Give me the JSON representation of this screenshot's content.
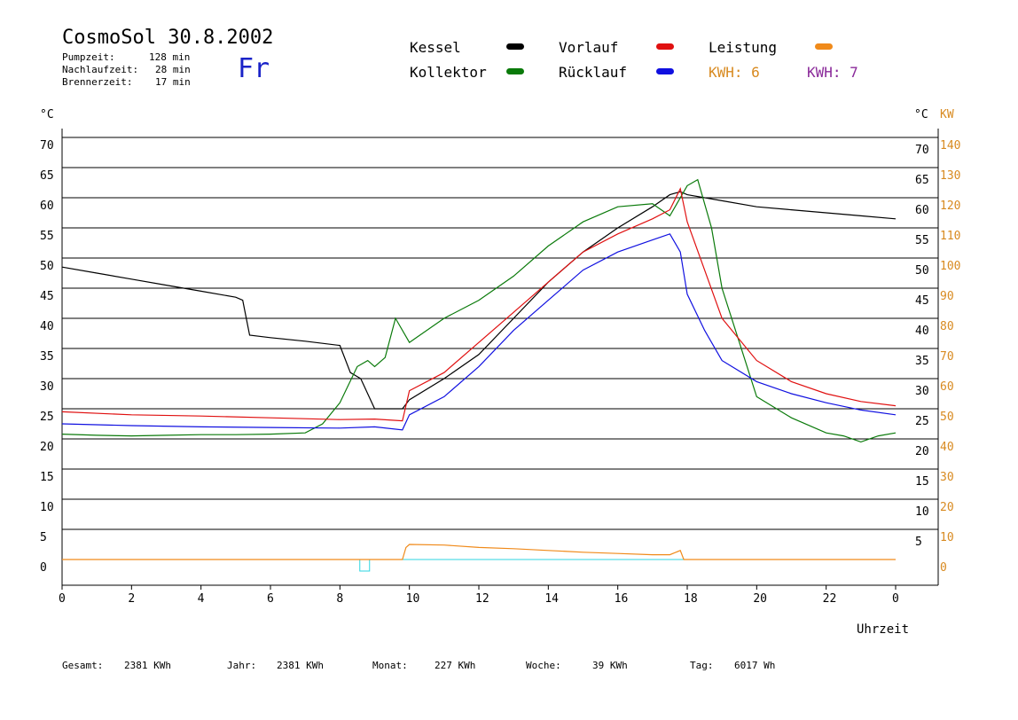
{
  "header": {
    "title": "CosmoSol 30.8.2002",
    "day": "Fr",
    "stats": [
      {
        "label": "Pumpzeit:",
        "value": "128 min"
      },
      {
        "label": "Nachlaufzeit:",
        "value": "28 min"
      },
      {
        "label": "Brennerzeit:",
        "value": "17 min"
      }
    ]
  },
  "legend": [
    {
      "label": "Kessel",
      "color": "#000000"
    },
    {
      "label": "Kollektor",
      "color": "#0a7a0a"
    },
    {
      "label": "Vorlauf",
      "color": "#e01010"
    },
    {
      "label": "Rücklauf",
      "color": "#1010e0"
    },
    {
      "label": "Leistung",
      "color": "#f08a1a"
    },
    {
      "label": "KWH: 6",
      "color": "#d88a20"
    },
    {
      "label": "KWH: 7",
      "color": "#8a2a9a"
    }
  ],
  "axes": {
    "left_unit": "°C",
    "right_unit_c": "°C",
    "right_unit_kw": "KW",
    "left_ticks": [
      "70",
      "65",
      "60",
      "55",
      "50",
      "45",
      "40",
      "35",
      "30",
      "25",
      "20",
      "15",
      "10",
      "5",
      "0"
    ],
    "right_ticks_c": [
      "70",
      "65",
      "60",
      "55",
      "50",
      "45",
      "40",
      "35",
      "30",
      "25",
      "20",
      "15",
      "10",
      "5"
    ],
    "right_ticks_kw": [
      "140",
      "130",
      "120",
      "110",
      "100",
      "90",
      "80",
      "70",
      "60",
      "50",
      "40",
      "30",
      "20",
      "10",
      "0"
    ],
    "x_ticks": [
      "0",
      "2",
      "4",
      "6",
      "8",
      "10",
      "12",
      "14",
      "16",
      "18",
      "20",
      "22",
      "0"
    ],
    "x_label": "Uhrzeit"
  },
  "footer": [
    {
      "label": "Gesamt:",
      "value": "2381 KWh"
    },
    {
      "label": "Jahr:",
      "value": "2381 KWh"
    },
    {
      "label": "Monat:",
      "value": "227 KWh"
    },
    {
      "label": "Woche:",
      "value": "39 KWh"
    },
    {
      "label": "Tag:",
      "value": "6017 Wh"
    }
  ],
  "chart_data": {
    "type": "line",
    "xlim": [
      0,
      24
    ],
    "ylim": [
      0,
      70
    ],
    "y2lim": [
      0,
      140
    ],
    "grid": true,
    "series": [
      {
        "name": "Kessel",
        "color": "#000000",
        "x": [
          0,
          1,
          2,
          3,
          4,
          5,
          5.2,
          5.4,
          6,
          7,
          8,
          8.3,
          8.6,
          9,
          9.8,
          10,
          11,
          12,
          13,
          14,
          15,
          16,
          17,
          17.5,
          17.8,
          18,
          19,
          20,
          21,
          22,
          23,
          24
        ],
        "y": [
          48.5,
          47.5,
          46.5,
          45.5,
          44.5,
          43.5,
          43,
          37.2,
          36.8,
          36.2,
          35.5,
          31,
          30,
          25,
          25,
          26.5,
          30,
          34,
          40,
          46,
          51,
          55,
          58.5,
          60.5,
          61,
          60.5,
          59.5,
          58.5,
          58,
          57.5,
          57,
          56.5
        ]
      },
      {
        "name": "Kollektor",
        "color": "#0a7a0a",
        "x": [
          0,
          1,
          2,
          3,
          4,
          5,
          6,
          7,
          7.5,
          8,
          8.5,
          8.8,
          9,
          9.3,
          9.6,
          10,
          11,
          12,
          13,
          14,
          15,
          16,
          17,
          17.5,
          17.8,
          18,
          18.3,
          18.7,
          19,
          19.5,
          20,
          21,
          22,
          22.5,
          23,
          23.5,
          24
        ],
        "y": [
          20.8,
          20.6,
          20.5,
          20.6,
          20.7,
          20.7,
          20.8,
          21,
          22.5,
          26,
          32,
          33,
          32,
          33.5,
          40,
          36,
          40,
          43,
          47,
          52,
          56,
          58.5,
          59,
          57,
          60,
          62,
          63,
          55,
          45,
          36,
          27,
          23.5,
          21,
          20.5,
          19.5,
          20.5,
          21
        ]
      },
      {
        "name": "Vorlauf",
        "color": "#e01010",
        "x": [
          0,
          2,
          4,
          6,
          8,
          9,
          9.8,
          10,
          11,
          12,
          13,
          14,
          15,
          16,
          17,
          17.5,
          17.8,
          18,
          18.5,
          19,
          20,
          21,
          22,
          23,
          24
        ],
        "y": [
          24.5,
          24,
          23.8,
          23.5,
          23.2,
          23.3,
          23,
          28,
          31,
          36,
          41,
          46,
          51,
          54,
          56.5,
          58,
          61.5,
          56,
          48,
          40,
          33,
          29.5,
          27.5,
          26.2,
          25.5
        ]
      },
      {
        "name": "Rücklauf",
        "color": "#1010e0",
        "x": [
          0,
          2,
          4,
          6,
          8,
          9,
          9.8,
          10,
          11,
          12,
          13,
          14,
          15,
          16,
          17,
          17.5,
          17.8,
          18,
          18.5,
          19,
          20,
          21,
          22,
          23,
          24
        ],
        "y": [
          22.5,
          22.2,
          22,
          21.9,
          21.8,
          22,
          21.5,
          24,
          27,
          32,
          38,
          43,
          48,
          51,
          53,
          54,
          51,
          44,
          38,
          33,
          29.5,
          27.5,
          26,
          24.8,
          24
        ]
      },
      {
        "name": "Leistung",
        "color": "#f08a1a",
        "x": [
          0,
          9.8,
          9.9,
          10,
          11,
          12,
          13,
          14,
          15,
          16,
          17,
          17.5,
          17.8,
          17.9,
          24
        ],
        "y": [
          0,
          0,
          2,
          2.5,
          2.4,
          2,
          1.8,
          1.5,
          1.2,
          1,
          0.8,
          0.8,
          1.5,
          0,
          0
        ]
      }
    ]
  }
}
